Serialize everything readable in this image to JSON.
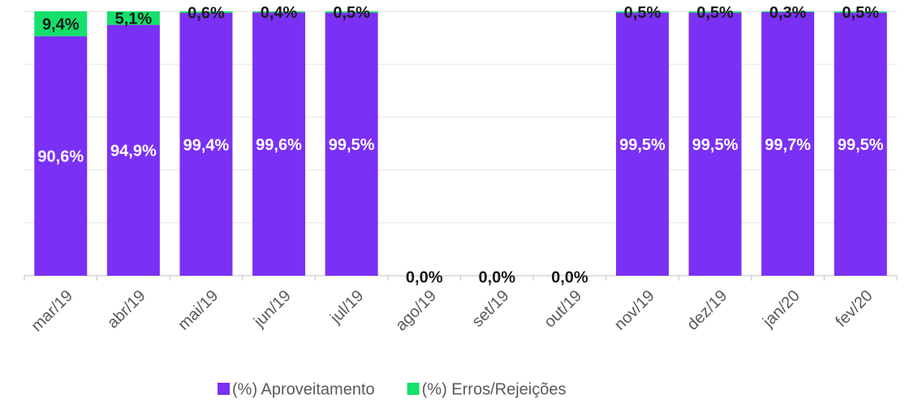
{
  "chart_data": {
    "type": "stacked_bar",
    "categories": [
      "mar/19",
      "abr/19",
      "mai/19",
      "jun/19",
      "jul/19",
      "ago/19",
      "set/19",
      "out/19",
      "nov/19",
      "dez/19",
      "jan/20",
      "fev/20"
    ],
    "series": [
      {
        "name": "(%) Aproveitamento",
        "color": "#7b30f5",
        "values": [
          90.6,
          94.9,
          99.4,
          99.6,
          99.5,
          null,
          null,
          null,
          99.5,
          99.5,
          99.7,
          99.5
        ],
        "value_labels": [
          "90,6%",
          "94,9%",
          "99,4%",
          "99,6%",
          "99,5%",
          null,
          null,
          null,
          "99,5%",
          "99,5%",
          "99,7%",
          "99,5%"
        ]
      },
      {
        "name": "(%) Erros/Rejeições",
        "color": "#14e06c",
        "values": [
          9.4,
          5.1,
          0.6,
          0.4,
          0.5,
          0,
          0,
          0,
          0.5,
          0.5,
          0.3,
          0.5
        ],
        "value_labels": [
          "9,4%",
          "5,1%",
          "0,6%",
          "0,4%",
          "0,5%",
          "0,0%",
          "0,0%",
          "0,0%",
          "0,5%",
          "0,5%",
          "0,3%",
          "0,5%"
        ]
      }
    ],
    "ylim": [
      0,
      100
    ],
    "yticks": [
      0,
      20,
      40,
      60,
      80,
      100
    ],
    "grid": true,
    "ytick_labels": false,
    "legend": "bottom"
  }
}
